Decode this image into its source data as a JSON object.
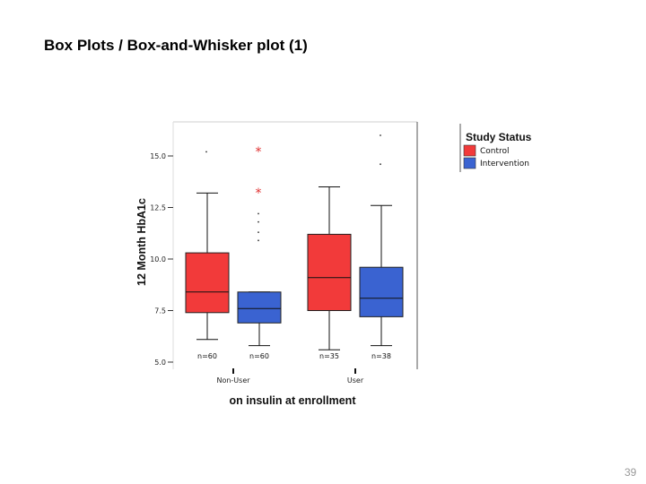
{
  "slide": {
    "title": "Box Plots / Box-and-Whisker plot (1)",
    "page_number": "39"
  },
  "colors": {
    "control": "#f23a3a",
    "intervention": "#3a63d1",
    "outlier_star": "#e03030"
  },
  "chart_data": {
    "type": "box",
    "ylabel": "12 Month HbA1c",
    "xlabel": "on insulin at enrollment",
    "ylim": [
      5.0,
      15.0
    ],
    "yticks": [
      "15.0",
      "12.5",
      "10.0",
      "7.5",
      "5.0"
    ],
    "ytick_values": [
      15.0,
      12.5,
      10.0,
      7.5,
      5.0
    ],
    "categories": [
      "Non-User",
      "User"
    ],
    "legend": {
      "title": "Study Status",
      "entries": [
        "Control",
        "Intervention"
      ],
      "placement": "right"
    },
    "boxes": [
      {
        "category": "Non-User",
        "series": "Control",
        "n_label": "n=60",
        "whisker_low": 6.1,
        "q1": 7.4,
        "median": 8.4,
        "q3": 10.3,
        "whisker_high": 13.2,
        "outlier_points": [
          15.2
        ],
        "outlier_stars": []
      },
      {
        "category": "Non-User",
        "series": "Intervention",
        "n_label": "n=60",
        "whisker_low": 5.8,
        "q1": 6.9,
        "median": 7.6,
        "q3": 8.4,
        "whisker_high": 8.4,
        "outlier_points": [
          12.2,
          11.8,
          11.3,
          10.9
        ],
        "outlier_stars": [
          15.3,
          13.3
        ]
      },
      {
        "category": "User",
        "series": "Control",
        "n_label": "n=35",
        "whisker_low": 5.6,
        "q1": 7.5,
        "median": 9.1,
        "q3": 11.2,
        "whisker_high": 13.5,
        "outlier_points": [],
        "outlier_stars": []
      },
      {
        "category": "User",
        "series": "Intervention",
        "n_label": "n=38",
        "whisker_low": 5.8,
        "q1": 7.2,
        "median": 8.1,
        "q3": 9.6,
        "whisker_high": 12.6,
        "outlier_points": [
          16.0,
          14.6
        ],
        "outlier_stars": []
      }
    ]
  }
}
